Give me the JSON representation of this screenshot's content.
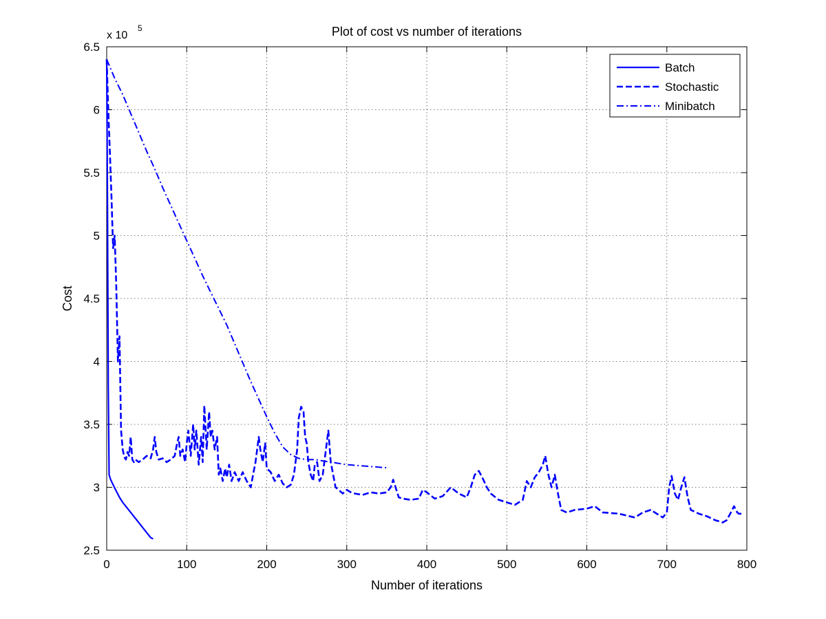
{
  "chart_data": {
    "type": "line",
    "title": "Plot of cost vs number of iterations",
    "xlabel": "Number of iterations",
    "ylabel": "Cost",
    "xlim": [
      0,
      800
    ],
    "ylim": [
      250000,
      650000
    ],
    "x_ticks": [
      0,
      100,
      200,
      300,
      400,
      500,
      600,
      700,
      800
    ],
    "y_ticks": [
      2.5,
      3,
      3.5,
      4,
      4.5,
      5,
      5.5,
      6,
      6.5
    ],
    "y_multiplier_base": "x 10",
    "y_multiplier_exponent": "5",
    "grid": true,
    "legend_position": "top-right",
    "line_color": "#0000ff",
    "series": [
      {
        "name": "Batch",
        "style": "solid",
        "x": [
          0,
          1,
          2,
          3,
          5,
          8,
          12,
          16,
          20,
          25,
          30,
          35,
          40,
          45,
          50,
          55,
          58
        ],
        "y": [
          640000,
          520000,
          380000,
          310000,
          306000,
          302000,
          297000,
          292000,
          288000,
          284000,
          280000,
          276000,
          272000,
          268000,
          264000,
          260000,
          259000
        ]
      },
      {
        "name": "Stochastic",
        "style": "dashed",
        "x": [
          0,
          2,
          4,
          6,
          8,
          10,
          12,
          14,
          16,
          18,
          20,
          22,
          24,
          26,
          28,
          30,
          32,
          34,
          36,
          40,
          45,
          50,
          55,
          58,
          60,
          62,
          65,
          70,
          75,
          80,
          85,
          88,
          90,
          92,
          95,
          98,
          100,
          102,
          105,
          108,
          110,
          112,
          115,
          118,
          120,
          122,
          125,
          128,
          130,
          132,
          135,
          138,
          140,
          142,
          145,
          148,
          150,
          153,
          156,
          160,
          165,
          170,
          175,
          180,
          183,
          186,
          190,
          192,
          195,
          198,
          200,
          205,
          210,
          215,
          220,
          225,
          230,
          234,
          238,
          240,
          243,
          246,
          248,
          250,
          252,
          255,
          258,
          260,
          263,
          266,
          270,
          274,
          277,
          280,
          283,
          286,
          290,
          295,
          300,
          305,
          310,
          320,
          330,
          340,
          350,
          355,
          358,
          360,
          365,
          370,
          380,
          390,
          395,
          400,
          410,
          420,
          430,
          440,
          450,
          455,
          460,
          465,
          470,
          475,
          480,
          490,
          500,
          510,
          520,
          525,
          530,
          535,
          540,
          545,
          548,
          552,
          556,
          560,
          564,
          568,
          575,
          585,
          600,
          610,
          620,
          640,
          660,
          670,
          680,
          690,
          695,
          700,
          703,
          706,
          710,
          714,
          718,
          722,
          726,
          730,
          740,
          750,
          760,
          770,
          775,
          780,
          784,
          788,
          790,
          795
        ],
        "y": [
          640000,
          600000,
          565000,
          530000,
          490000,
          500000,
          460000,
          400000,
          420000,
          345000,
          330000,
          324000,
          322000,
          328000,
          325000,
          340000,
          322000,
          320000,
          322000,
          320000,
          322000,
          325000,
          323000,
          330000,
          340000,
          328000,
          322000,
          323000,
          320000,
          322000,
          325000,
          335000,
          340000,
          325000,
          330000,
          320000,
          335000,
          345000,
          325000,
          350000,
          330000,
          345000,
          318000,
          340000,
          320000,
          365000,
          330000,
          360000,
          340000,
          345000,
          330000,
          340000,
          310000,
          315000,
          305000,
          315000,
          308000,
          318000,
          305000,
          312000,
          305000,
          312000,
          305000,
          300000,
          310000,
          320000,
          340000,
          330000,
          320000,
          335000,
          315000,
          312000,
          305000,
          310000,
          303000,
          300000,
          302000,
          310000,
          330000,
          355000,
          364000,
          360000,
          340000,
          335000,
          320000,
          310000,
          305000,
          318000,
          320000,
          305000,
          310000,
          330000,
          345000,
          320000,
          310000,
          300000,
          298000,
          295000,
          298000,
          296000,
          295000,
          294000,
          296000,
          295000,
          296000,
          300000,
          306000,
          302000,
          292000,
          291000,
          290000,
          291000,
          298000,
          296000,
          291000,
          293000,
          300000,
          295000,
          292000,
          300000,
          310000,
          313000,
          307000,
          300000,
          295000,
          290000,
          288000,
          286000,
          290000,
          305000,
          300000,
          308000,
          312000,
          318000,
          325000,
          310000,
          300000,
          310000,
          295000,
          282000,
          280000,
          282000,
          283000,
          285000,
          280000,
          279000,
          276000,
          280000,
          282000,
          278000,
          276000,
          280000,
          300000,
          309000,
          295000,
          290000,
          300000,
          308000,
          292000,
          282000,
          279000,
          277000,
          274000,
          272000,
          274000,
          280000,
          285000,
          280000,
          279000,
          279000
        ]
      },
      {
        "name": "Minibatch",
        "style": "dashdot",
        "x": [
          0,
          10,
          20,
          30,
          40,
          50,
          60,
          70,
          80,
          90,
          100,
          110,
          120,
          130,
          140,
          150,
          160,
          170,
          180,
          190,
          200,
          210,
          220,
          230,
          240,
          250,
          260,
          270,
          280,
          290,
          300,
          310,
          320,
          330,
          340,
          350
        ],
        "y": [
          640000,
          625000,
          612000,
          597000,
          582000,
          567000,
          553000,
          538000,
          524000,
          510000,
          496000,
          482000,
          468000,
          455000,
          442000,
          429000,
          414000,
          399000,
          384000,
          370000,
          356000,
          343000,
          332000,
          326000,
          323000,
          322000,
          322000,
          321000,
          320000,
          319000,
          318000,
          317500,
          317000,
          316500,
          316000,
          315500
        ]
      }
    ]
  }
}
